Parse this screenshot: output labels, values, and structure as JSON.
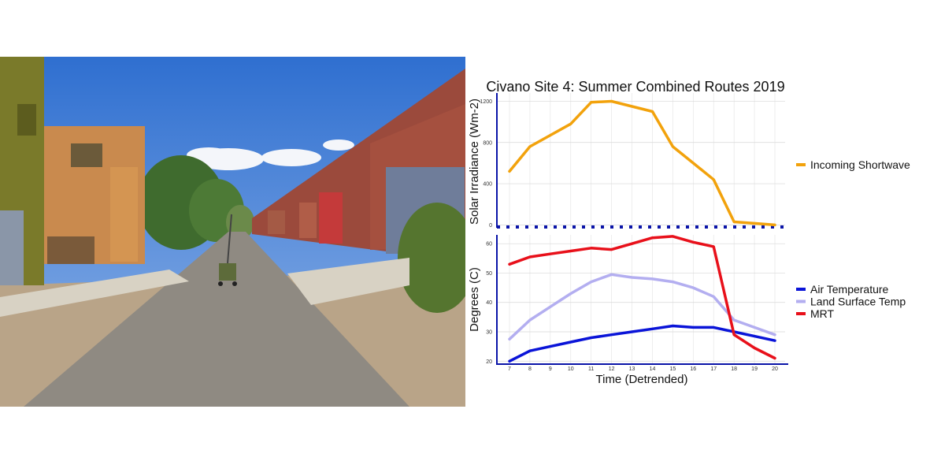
{
  "photo": {
    "icon": "street-photo",
    "colors": {
      "sky": "#3a78d4",
      "road": "#8f8a82",
      "wall_red": "#9b4a3c",
      "wall_orange": "#c98a4e",
      "wall_olive": "#7a7a2a"
    }
  },
  "chart_data": {
    "type": "line",
    "title": "Civano Site 4: Summer Combined Routes 2019",
    "xlabel": "Time (Detrended)",
    "x": [
      7,
      8,
      9,
      10,
      11,
      12,
      13,
      14,
      15,
      16,
      17,
      18,
      19,
      20
    ],
    "x_tick_labels": [
      "7",
      "8",
      "9",
      "10",
      "11",
      "12",
      "13",
      "14",
      "15",
      "16",
      "17",
      "18",
      "19",
      "20"
    ],
    "grid": true,
    "panels": [
      {
        "ylabel": "Solar Irradiance (Wm-2)",
        "ylim": [
          -20,
          1280
        ],
        "y_ticks": [
          0,
          400,
          800,
          1200
        ],
        "legend_placement": "right",
        "series": [
          {
            "name": "Incoming Shortwave",
            "color": "#f2a20c",
            "x": [
              7,
              8,
              9,
              10,
              11,
              12,
              13,
              14,
              15,
              16,
              17,
              18,
              19,
              20
            ],
            "values": [
              520,
              760,
              870,
              980,
              1190,
              1200,
              1150,
              1100,
              760,
              600,
              440,
              30,
              15,
              0
            ]
          }
        ]
      },
      {
        "ylabel": "Degrees (C)",
        "ylim": [
          19,
          63
        ],
        "y_ticks": [
          20,
          30,
          40,
          50,
          60
        ],
        "legend_placement": "right",
        "series": [
          {
            "name": "Air Temperature",
            "color": "#0a14d8",
            "x": [
              7,
              8,
              9,
              10,
              11,
              12,
              13,
              14,
              15,
              16,
              17,
              18,
              19,
              20
            ],
            "values": [
              20,
              23.5,
              25,
              26.5,
              28,
              29,
              30,
              31,
              32,
              31.5,
              31.5,
              30,
              28.5,
              27
            ]
          },
          {
            "name": "Land Surface Temp",
            "color": "#b3aef0",
            "x": [
              7,
              8,
              9,
              10,
              11,
              12,
              13,
              14,
              15,
              16,
              17,
              18,
              19,
              20
            ],
            "values": [
              27.5,
              34,
              38.5,
              43,
              47,
              49.5,
              48.5,
              48,
              47,
              45,
              42,
              34,
              31.5,
              29
            ]
          },
          {
            "name": "MRT",
            "color": "#e8101a",
            "x": [
              7,
              8,
              9,
              10,
              11,
              12,
              13,
              14,
              15,
              16,
              17,
              18,
              19,
              20
            ],
            "values": [
              53,
              55.5,
              56.5,
              57.5,
              58.5,
              58,
              60,
              62,
              62.5,
              60.5,
              59,
              29,
              24.5,
              21
            ]
          }
        ]
      }
    ]
  }
}
